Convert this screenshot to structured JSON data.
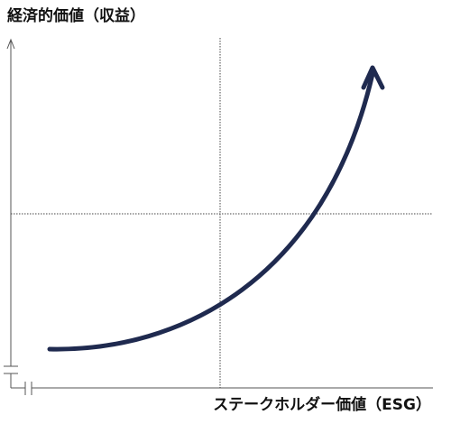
{
  "y_axis": {
    "label": "経済的価値（収益）"
  },
  "x_axis": {
    "label": "ステークホルダー価値（ESG）"
  }
}
